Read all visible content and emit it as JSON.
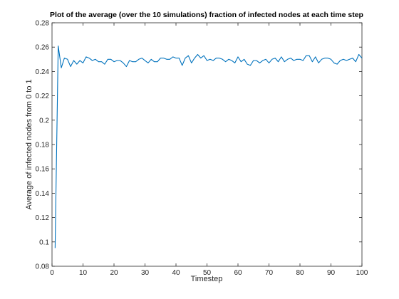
{
  "chart_data": {
    "type": "line",
    "title": "Plot of the average (over the 10 simulations) fraction of infected nodes at each time step",
    "xlabel": "Timestep",
    "ylabel": "Average of infected nodes from 0 to 1",
    "xlim": [
      0,
      100
    ],
    "ylim": [
      0.08,
      0.28
    ],
    "xticks": [
      "0",
      "10",
      "20",
      "30",
      "40",
      "50",
      "60",
      "70",
      "80",
      "90",
      "100"
    ],
    "yticks": [
      "0.08",
      "0.1",
      "0.12",
      "0.14",
      "0.16",
      "0.18",
      "0.2",
      "0.22",
      "0.24",
      "0.26",
      "0.28"
    ],
    "grid": false,
    "series": [
      {
        "color": "#0072bd",
        "x": [
          1,
          2,
          3,
          4,
          5,
          6,
          7,
          8,
          9,
          10,
          11,
          12,
          13,
          14,
          15,
          16,
          17,
          18,
          19,
          20,
          21,
          22,
          23,
          24,
          25,
          26,
          27,
          28,
          29,
          30,
          31,
          32,
          33,
          34,
          35,
          36,
          37,
          38,
          39,
          40,
          41,
          42,
          43,
          44,
          45,
          46,
          47,
          48,
          49,
          50,
          51,
          52,
          53,
          54,
          55,
          56,
          57,
          58,
          59,
          60,
          61,
          62,
          63,
          64,
          65,
          66,
          67,
          68,
          69,
          70,
          71,
          72,
          73,
          74,
          75,
          76,
          77,
          78,
          79,
          80,
          81,
          82,
          83,
          84,
          85,
          86,
          87,
          88,
          89,
          90,
          91,
          92,
          93,
          94,
          95,
          96,
          97,
          98,
          99,
          100
        ],
        "y": [
          0.095,
          0.261,
          0.243,
          0.251,
          0.25,
          0.244,
          0.249,
          0.246,
          0.249,
          0.247,
          0.252,
          0.251,
          0.249,
          0.25,
          0.248,
          0.248,
          0.246,
          0.25,
          0.25,
          0.248,
          0.249,
          0.249,
          0.247,
          0.244,
          0.249,
          0.248,
          0.248,
          0.25,
          0.251,
          0.249,
          0.247,
          0.25,
          0.248,
          0.248,
          0.251,
          0.251,
          0.25,
          0.25,
          0.252,
          0.251,
          0.251,
          0.245,
          0.251,
          0.253,
          0.247,
          0.251,
          0.254,
          0.251,
          0.253,
          0.249,
          0.25,
          0.249,
          0.251,
          0.251,
          0.25,
          0.248,
          0.25,
          0.249,
          0.247,
          0.252,
          0.248,
          0.25,
          0.246,
          0.245,
          0.249,
          0.249,
          0.247,
          0.249,
          0.25,
          0.247,
          0.25,
          0.251,
          0.248,
          0.252,
          0.248,
          0.25,
          0.251,
          0.249,
          0.25,
          0.25,
          0.249,
          0.253,
          0.253,
          0.248,
          0.252,
          0.247,
          0.25,
          0.251,
          0.251,
          0.25,
          0.247,
          0.246,
          0.249,
          0.25,
          0.249,
          0.25,
          0.251,
          0.248,
          0.254,
          0.251
        ]
      }
    ]
  }
}
